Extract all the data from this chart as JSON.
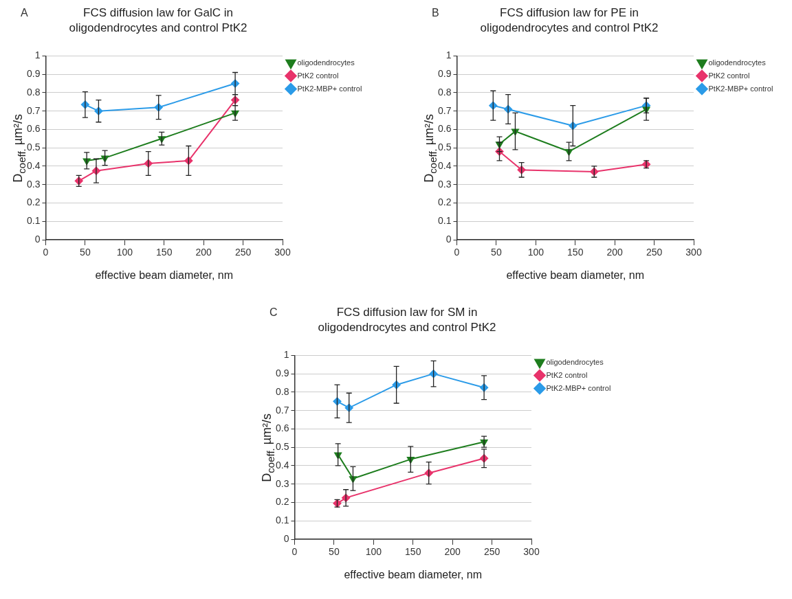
{
  "chart_data": [
    {
      "type": "line",
      "title": "FCS diffusion law for GalC in oligodendrocytes and control PtK2",
      "xlabel": "effective beam diameter, nm",
      "ylabel": "D$_{coeff.}$ µm²/s",
      "annotations": [
        "A"
      ],
      "xlim": [
        0,
        300
      ],
      "xticks": [
        0,
        50,
        100,
        150,
        200,
        250,
        300
      ],
      "ylim": [
        0,
        1
      ],
      "yticks": [
        0,
        0.1,
        0.2,
        0.3,
        0.4,
        0.5,
        0.6,
        0.7,
        0.8,
        0.9,
        1
      ],
      "grid": "y",
      "legend": "right",
      "series": [
        {
          "name": "oligodendrocytes",
          "color": "#1e7d1e",
          "marker": "triangle",
          "x": [
            52,
            75,
            147,
            240
          ],
          "values": [
            0.43,
            0.445,
            0.55,
            0.69
          ],
          "errors": [
            0.045,
            0.04,
            0.035,
            0.04
          ]
        },
        {
          "name": "PtK2 control",
          "color": "#e8336b",
          "marker": "diamond",
          "x": [
            42,
            64,
            130,
            181,
            240
          ],
          "values": [
            0.32,
            0.375,
            0.415,
            0.43,
            0.76
          ],
          "errors": [
            0.03,
            0.065,
            0.065,
            0.08,
            0.03
          ]
        },
        {
          "name": "PtK2-MBP+ control",
          "color": "#2b9be8",
          "marker": "diamond",
          "x": [
            50,
            67,
            143,
            240
          ],
          "values": [
            0.735,
            0.7,
            0.72,
            0.85
          ],
          "errors": [
            0.07,
            0.06,
            0.065,
            0.06
          ]
        }
      ]
    },
    {
      "type": "line",
      "title": "FCS diffusion law for PE in oligodendrocytes and control PtK2",
      "xlabel": "effective beam diameter, nm",
      "ylabel": "D$_{coeff.}$ µm²/s",
      "annotations": [
        "B"
      ],
      "xlim": [
        0,
        300
      ],
      "xticks": [
        0,
        50,
        100,
        150,
        200,
        250,
        300
      ],
      "ylim": [
        0,
        1
      ],
      "yticks": [
        0,
        0.1,
        0.2,
        0.3,
        0.4,
        0.5,
        0.6,
        0.7,
        0.8,
        0.9,
        1
      ],
      "grid": "y",
      "legend": "right",
      "series": [
        {
          "name": "oligodendrocytes",
          "color": "#1e7d1e",
          "marker": "triangle",
          "x": [
            54,
            74,
            142,
            240
          ],
          "values": [
            0.52,
            0.59,
            0.48,
            0.71
          ],
          "errors": [
            0.04,
            0.1,
            0.05,
            0.06
          ]
        },
        {
          "name": "PtK2 control",
          "color": "#e8336b",
          "marker": "diamond",
          "x": [
            54,
            82,
            174,
            240
          ],
          "values": [
            0.48,
            0.38,
            0.37,
            0.41
          ],
          "errors": [
            0.05,
            0.04,
            0.03,
            0.02
          ]
        },
        {
          "name": "PtK2-MBP+ control",
          "color": "#2b9be8",
          "marker": "diamond",
          "x": [
            46,
            65,
            147,
            240
          ],
          "values": [
            0.73,
            0.71,
            0.62,
            0.73
          ],
          "errors": [
            0.08,
            0.08,
            0.11,
            0.04
          ]
        }
      ]
    },
    {
      "type": "line",
      "title": "FCS diffusion law for SM in oligodendrocytes and control PtK2",
      "xlabel": "effective beam diameter, nm",
      "ylabel": "D$_{coeff.}$ µm²/s",
      "annotations": [
        "C"
      ],
      "xlim": [
        0,
        300
      ],
      "xticks": [
        0,
        50,
        100,
        150,
        200,
        250,
        300
      ],
      "ylim": [
        0,
        1
      ],
      "yticks": [
        0,
        0.1,
        0.2,
        0.3,
        0.4,
        0.5,
        0.6,
        0.7,
        0.8,
        0.9,
        1
      ],
      "grid": "y",
      "legend": "right",
      "series": [
        {
          "name": "oligodendrocytes",
          "color": "#1e7d1e",
          "marker": "triangle",
          "x": [
            55,
            74,
            147,
            240
          ],
          "values": [
            0.46,
            0.33,
            0.435,
            0.53
          ],
          "errors": [
            0.06,
            0.065,
            0.07,
            0.03
          ]
        },
        {
          "name": "PtK2 control",
          "color": "#e8336b",
          "marker": "diamond",
          "x": [
            54,
            65,
            170,
            240
          ],
          "values": [
            0.195,
            0.225,
            0.36,
            0.44
          ],
          "errors": [
            0.02,
            0.045,
            0.06,
            0.05
          ]
        },
        {
          "name": "PtK2-MBP+ control",
          "color": "#2b9be8",
          "marker": "diamond",
          "x": [
            54,
            69,
            129,
            176,
            240
          ],
          "values": [
            0.75,
            0.715,
            0.84,
            0.9,
            0.825
          ],
          "errors": [
            0.09,
            0.08,
            0.1,
            0.07,
            0.065
          ]
        }
      ]
    }
  ]
}
